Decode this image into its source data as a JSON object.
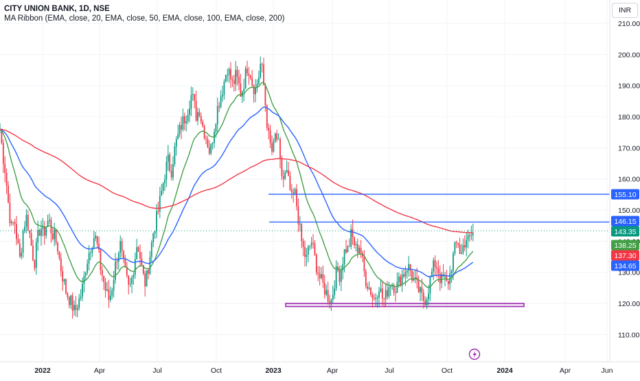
{
  "header": {
    "title": "CITY UNION BANK, 1D, NSE",
    "indicator": "MA Ribbon (EMA, close, 20, EMA, close, 50, EMA, close, 100, EMA, close, 200)",
    "currency": "INR"
  },
  "chart_data": {
    "type": "candlestick",
    "y_axis": {
      "ticks": [
        "210.00",
        "200.00",
        "190.00",
        "180.00",
        "170.00",
        "160.00",
        "150.00",
        "140.00",
        "130.00",
        "120.00",
        "110.00"
      ],
      "ylim": [
        105,
        212
      ]
    },
    "x_axis": {
      "ticks": [
        "2022",
        "Apr",
        "Jul",
        "Oct",
        "2023",
        "Apr",
        "Jul",
        "Oct",
        "2024",
        "Apr",
        "Jun"
      ]
    },
    "price_labels": [
      {
        "value": "155.10",
        "color": "#2962ff"
      },
      {
        "value": "146.15",
        "color": "#2962ff"
      },
      {
        "value": "143.35",
        "color": "#089981"
      },
      {
        "value": "138.25",
        "color": "#43a047"
      },
      {
        "value": "137.30",
        "color": "#f23645"
      },
      {
        "value": "134.65",
        "color": "#2962ff"
      }
    ],
    "horizontal_levels": [
      {
        "price": 155.1
      },
      {
        "price": 146.15
      }
    ],
    "support_zone": {
      "top": 120,
      "bottom": 119
    },
    "current_price": 143.35,
    "colors": {
      "up": "#089981",
      "down": "#f23645",
      "ema20": "#43a047",
      "ema50": "#2962ff",
      "ema200": "#f23645",
      "zone": "#9c27b0"
    },
    "price_path": [
      [
        0,
        176
      ],
      [
        4,
        168
      ],
      [
        8,
        162
      ],
      [
        13,
        150
      ],
      [
        17,
        144
      ],
      [
        21,
        147
      ],
      [
        25,
        140
      ],
      [
        29,
        134
      ],
      [
        34,
        144
      ],
      [
        38,
        148
      ],
      [
        42,
        144
      ],
      [
        46,
        138
      ],
      [
        50,
        133
      ],
      [
        55,
        141
      ],
      [
        59,
        145
      ],
      [
        63,
        142
      ],
      [
        67,
        145
      ],
      [
        71,
        147
      ],
      [
        75,
        143
      ],
      [
        80,
        141
      ],
      [
        84,
        138
      ],
      [
        88,
        132
      ],
      [
        92,
        128
      ],
      [
        96,
        124
      ],
      [
        100,
        122
      ],
      [
        104,
        120
      ],
      [
        109,
        117
      ],
      [
        113,
        120
      ],
      [
        117,
        122
      ],
      [
        121,
        126
      ],
      [
        125,
        132
      ],
      [
        129,
        136
      ],
      [
        134,
        140
      ],
      [
        138,
        142
      ],
      [
        142,
        138
      ],
      [
        146,
        132
      ],
      [
        150,
        128
      ],
      [
        154,
        124
      ],
      [
        159,
        121
      ],
      [
        163,
        125
      ],
      [
        167,
        131
      ],
      [
        171,
        136
      ],
      [
        175,
        139
      ],
      [
        179,
        133
      ],
      [
        184,
        128
      ],
      [
        188,
        124
      ],
      [
        192,
        128
      ],
      [
        196,
        134
      ],
      [
        200,
        140
      ],
      [
        204,
        135
      ],
      [
        208,
        129
      ],
      [
        212,
        126
      ],
      [
        216,
        132
      ],
      [
        220,
        138
      ],
      [
        224,
        144
      ],
      [
        229,
        148
      ],
      [
        233,
        153
      ],
      [
        237,
        158
      ],
      [
        241,
        163
      ],
      [
        245,
        166
      ],
      [
        249,
        162
      ],
      [
        253,
        168
      ],
      [
        257,
        172
      ],
      [
        261,
        175
      ],
      [
        265,
        178
      ],
      [
        270,
        180
      ],
      [
        274,
        183
      ],
      [
        278,
        187
      ],
      [
        282,
        185
      ],
      [
        286,
        180
      ],
      [
        290,
        183
      ],
      [
        294,
        178
      ],
      [
        298,
        175
      ],
      [
        302,
        172
      ],
      [
        306,
        168
      ],
      [
        310,
        174
      ],
      [
        315,
        181
      ],
      [
        319,
        185
      ],
      [
        323,
        188
      ],
      [
        327,
        192
      ],
      [
        331,
        196
      ],
      [
        335,
        193
      ],
      [
        339,
        190
      ],
      [
        343,
        193
      ],
      [
        347,
        191
      ],
      [
        351,
        187
      ],
      [
        356,
        192
      ],
      [
        360,
        196
      ],
      [
        364,
        195
      ],
      [
        368,
        190
      ],
      [
        372,
        189
      ],
      [
        376,
        192
      ],
      [
        380,
        198
      ],
      [
        384,
        190
      ],
      [
        388,
        180
      ],
      [
        392,
        172
      ],
      [
        397,
        168
      ],
      [
        401,
        174
      ],
      [
        405,
        172
      ],
      [
        409,
        162
      ],
      [
        413,
        160
      ],
      [
        417,
        162
      ],
      [
        421,
        158
      ],
      [
        425,
        153
      ],
      [
        429,
        156
      ],
      [
        433,
        150
      ],
      [
        438,
        141
      ],
      [
        442,
        137
      ],
      [
        446,
        134
      ],
      [
        450,
        138
      ],
      [
        454,
        140
      ],
      [
        458,
        135
      ],
      [
        462,
        131
      ],
      [
        466,
        128
      ],
      [
        470,
        126
      ],
      [
        474,
        124
      ],
      [
        478,
        122
      ],
      [
        483,
        121
      ],
      [
        487,
        127
      ],
      [
        491,
        131
      ],
      [
        495,
        129
      ],
      [
        499,
        134
      ],
      [
        503,
        138
      ],
      [
        507,
        137
      ],
      [
        511,
        142
      ],
      [
        515,
        140
      ],
      [
        519,
        137
      ],
      [
        524,
        139
      ],
      [
        528,
        133
      ],
      [
        532,
        128
      ],
      [
        536,
        126
      ],
      [
        540,
        124
      ],
      [
        544,
        121
      ],
      [
        548,
        123
      ],
      [
        552,
        126
      ],
      [
        556,
        122
      ],
      [
        560,
        121
      ],
      [
        565,
        125
      ],
      [
        569,
        127
      ],
      [
        573,
        126
      ],
      [
        577,
        125
      ],
      [
        581,
        127
      ],
      [
        585,
        129
      ],
      [
        589,
        130
      ],
      [
        593,
        132
      ],
      [
        597,
        131
      ],
      [
        601,
        128
      ],
      [
        606,
        126
      ],
      [
        610,
        124
      ],
      [
        614,
        122
      ],
      [
        618,
        121
      ],
      [
        622,
        123
      ],
      [
        626,
        127
      ],
      [
        630,
        131
      ],
      [
        634,
        133
      ],
      [
        638,
        131
      ],
      [
        642,
        127
      ],
      [
        646,
        128
      ],
      [
        651,
        126
      ],
      [
        655,
        129
      ],
      [
        659,
        134
      ],
      [
        663,
        138
      ],
      [
        667,
        140
      ],
      [
        671,
        135
      ],
      [
        675,
        139
      ],
      [
        679,
        141
      ],
      [
        683,
        140
      ],
      [
        687,
        142
      ],
      [
        691,
        143
      ]
    ]
  }
}
